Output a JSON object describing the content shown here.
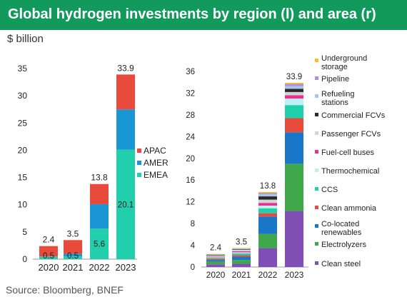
{
  "title": "Global hydrogen investments by region (l) and area (r)",
  "unit": "$ billion",
  "source": "Source: Bloomberg, BNEF",
  "chart_data": [
    {
      "type": "bar",
      "stacked": true,
      "categories": [
        "2020",
        "2021",
        "2022",
        "2023"
      ],
      "ylim": [
        0,
        35
      ],
      "yticks": [
        0,
        5,
        10,
        15,
        20,
        25,
        30,
        35
      ],
      "series": [
        {
          "name": "EMEA",
          "color": "#22cfad",
          "values": [
            0.5,
            0.5,
            5.6,
            20.1
          ]
        },
        {
          "name": "AMER",
          "color": "#1a96d4",
          "values": [
            0.0,
            0.5,
            4.5,
            7.4
          ]
        },
        {
          "name": "APAC",
          "color": "#e84a3c",
          "values": [
            1.9,
            2.5,
            3.7,
            6.4
          ]
        }
      ],
      "totals": [
        "2.4",
        "3.5",
        "13.8",
        "33.9"
      ],
      "segment_labels": [
        {
          "series": "EMEA",
          "category": "2020",
          "text": "0.5"
        },
        {
          "series": "EMEA",
          "category": "2021",
          "text": "0.5"
        },
        {
          "series": "EMEA",
          "category": "2022",
          "text": "5.6"
        },
        {
          "series": "EMEA",
          "category": "2023",
          "text": "20.1"
        }
      ],
      "legend": [
        "APAC",
        "AMER",
        "EMEA"
      ],
      "legend_position": "right"
    },
    {
      "type": "bar",
      "stacked": true,
      "categories": [
        "2020",
        "2021",
        "2022",
        "2023"
      ],
      "ylim": [
        0,
        36
      ],
      "yticks": [
        0,
        4,
        8,
        12,
        16,
        20,
        24,
        28,
        32,
        36
      ],
      "series": [
        {
          "name": "Clean steel",
          "color": "#7f4fb5",
          "values": [
            0.5,
            0.6,
            3.5,
            10.3
          ]
        },
        {
          "name": "Electrolyzers",
          "color": "#3fa84a",
          "values": [
            0.5,
            0.7,
            2.6,
            8.7
          ]
        },
        {
          "name": "Co-located renewables",
          "color": "#1a76c9",
          "values": [
            0.3,
            0.6,
            3.2,
            5.8
          ]
        },
        {
          "name": "Clean ammonia",
          "color": "#e84a3c",
          "values": [
            0.2,
            0.3,
            0.6,
            2.6
          ]
        },
        {
          "name": "CCS",
          "color": "#22cfad",
          "values": [
            0.2,
            0.3,
            0.9,
            2.4
          ]
        },
        {
          "name": "Thermochemical",
          "color": "#bdeff3",
          "values": [
            0.1,
            0.2,
            0.5,
            1.2
          ]
        },
        {
          "name": "Fuel-cell buses",
          "color": "#e8318f",
          "values": [
            0.1,
            0.2,
            0.5,
            0.6
          ]
        },
        {
          "name": "Passenger FCVs",
          "color": "#d4d4d8",
          "values": [
            0.2,
            0.3,
            0.6,
            0.6
          ]
        },
        {
          "name": "Commercial FCVs",
          "color": "#2b2b2b",
          "values": [
            0.1,
            0.1,
            0.6,
            0.6
          ]
        },
        {
          "name": "Refueling stations",
          "color": "#a8c6e8",
          "values": [
            0.1,
            0.1,
            0.4,
            0.5
          ]
        },
        {
          "name": "Pipeline",
          "color": "#b38ee0",
          "values": [
            0.05,
            0.05,
            0.2,
            0.4
          ]
        },
        {
          "name": "Underground storage",
          "color": "#f5c518",
          "values": [
            0.05,
            0.05,
            0.2,
            0.2
          ]
        }
      ],
      "totals": [
        "2.4",
        "3.5",
        "13.8",
        "33.9"
      ],
      "legend": [
        "Underground storage",
        "Pipeline",
        "Refueling stations",
        "Commercial FCVs",
        "Passenger FCVs",
        "Fuel-cell buses",
        "Thermochemical",
        "CCS",
        "Clean ammonia",
        "Co-located renewables",
        "Electrolyzers",
        "Clean steel"
      ],
      "legend_position": "right"
    }
  ]
}
